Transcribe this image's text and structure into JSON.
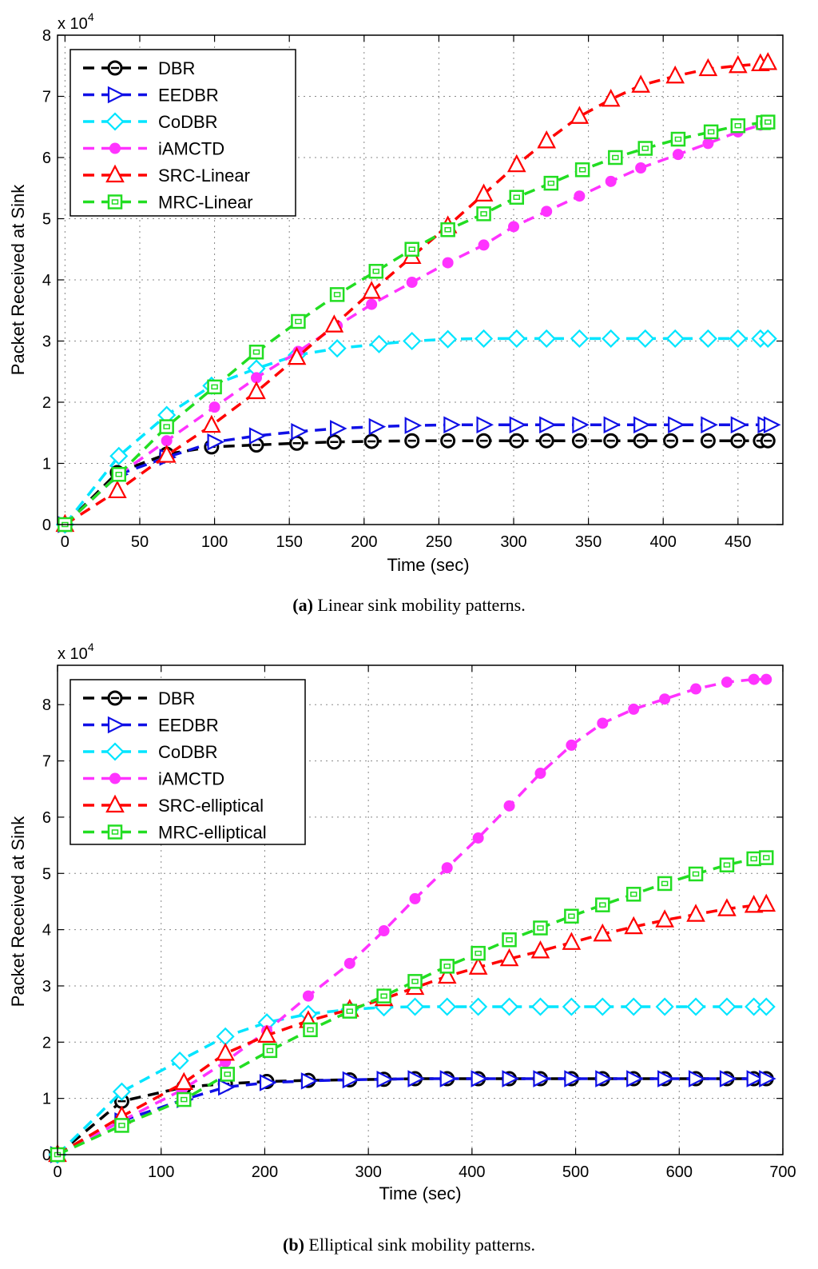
{
  "chart_data": [
    {
      "type": "line",
      "caption_letter": "a",
      "caption_text": " Linear sink mobility patterns.",
      "xlabel": "Time (sec)",
      "ylabel": "Packet Received at Sink",
      "y_multiplier": "x 10",
      "y_multiplier_exp": "4",
      "xlim": [
        -5,
        480
      ],
      "ylim": [
        0,
        8
      ],
      "xticks": [
        0,
        50,
        100,
        150,
        200,
        250,
        300,
        350,
        400,
        450
      ],
      "yticks": [
        0,
        1,
        2,
        3,
        4,
        5,
        6,
        7,
        8
      ],
      "grid": true,
      "legend_position": "top-left",
      "series": [
        {
          "name": "DBR",
          "color": "#000000",
          "marker": "circle-bar",
          "x": [
            0,
            35,
            68,
            98,
            128,
            155,
            180,
            205,
            232,
            256,
            280,
            302,
            322,
            344,
            365,
            385,
            405,
            430,
            450,
            465,
            470
          ],
          "y": [
            0,
            0.85,
            1.15,
            1.27,
            1.3,
            1.33,
            1.35,
            1.36,
            1.37,
            1.37,
            1.37,
            1.37,
            1.37,
            1.37,
            1.37,
            1.37,
            1.37,
            1.37,
            1.37,
            1.37,
            1.37
          ]
        },
        {
          "name": "EEDBR",
          "color": "#1010e6",
          "marker": "triangle-right",
          "x": [
            0,
            36,
            68,
            100,
            128,
            156,
            182,
            208,
            232,
            258,
            280,
            302,
            322,
            344,
            365,
            385,
            408,
            430,
            450,
            468,
            472
          ],
          "y": [
            0,
            0.82,
            1.1,
            1.35,
            1.45,
            1.52,
            1.57,
            1.6,
            1.62,
            1.63,
            1.63,
            1.63,
            1.63,
            1.63,
            1.63,
            1.63,
            1.63,
            1.63,
            1.63,
            1.63,
            1.63
          ]
        },
        {
          "name": "CoDBR",
          "color": "#00e5ff",
          "marker": "diamond",
          "x": [
            0,
            36,
            68,
            98,
            128,
            155,
            182,
            210,
            232,
            256,
            280,
            302,
            322,
            344,
            365,
            388,
            408,
            430,
            450,
            465,
            470
          ],
          "y": [
            0,
            1.12,
            1.79,
            2.27,
            2.55,
            2.77,
            2.88,
            2.95,
            3.0,
            3.03,
            3.04,
            3.04,
            3.04,
            3.04,
            3.04,
            3.04,
            3.04,
            3.04,
            3.04,
            3.04,
            3.04
          ]
        },
        {
          "name": "iAMCTD",
          "color": "#ff33ff",
          "marker": "dot",
          "x": [
            0,
            35,
            68,
            100,
            128,
            156,
            182,
            205,
            232,
            256,
            280,
            300,
            322,
            344,
            365,
            385,
            410,
            430,
            450,
            465
          ],
          "y": [
            0,
            0.8,
            1.37,
            1.92,
            2.4,
            2.83,
            3.25,
            3.6,
            3.96,
            4.28,
            4.57,
            4.87,
            5.12,
            5.37,
            5.61,
            5.83,
            6.05,
            6.23,
            6.42,
            6.53
          ]
        },
        {
          "name": "SRC-Linear",
          "color": "#ff0000",
          "marker": "triangle-up",
          "x": [
            0,
            35,
            68,
            98,
            128,
            155,
            180,
            205,
            232,
            256,
            280,
            302,
            322,
            344,
            365,
            385,
            408,
            430,
            450,
            465,
            470
          ],
          "y": [
            0,
            0.55,
            1.13,
            1.62,
            2.17,
            2.73,
            3.26,
            3.81,
            4.38,
            4.88,
            5.4,
            5.88,
            6.27,
            6.67,
            6.95,
            7.18,
            7.33,
            7.45,
            7.5,
            7.53,
            7.55
          ]
        },
        {
          "name": "MRC-Linear",
          "color": "#22dd22",
          "marker": "square",
          "x": [
            0,
            36,
            68,
            100,
            128,
            156,
            182,
            208,
            232,
            256,
            280,
            302,
            325,
            346,
            368,
            388,
            410,
            432,
            450,
            467,
            470
          ],
          "y": [
            0,
            0.82,
            1.6,
            2.25,
            2.82,
            3.32,
            3.76,
            4.14,
            4.5,
            4.82,
            5.08,
            5.35,
            5.58,
            5.8,
            6.0,
            6.15,
            6.3,
            6.42,
            6.52,
            6.57,
            6.58
          ]
        }
      ]
    },
    {
      "type": "line",
      "caption_letter": "b",
      "caption_text": " Elliptical sink mobility patterns.",
      "xlabel": "Time (sec)",
      "ylabel": "Packet Received at Sink",
      "y_multiplier": "x 10",
      "y_multiplier_exp": "4",
      "xlim": [
        0,
        700
      ],
      "ylim": [
        0,
        8.7
      ],
      "xticks": [
        0,
        100,
        200,
        300,
        400,
        500,
        600,
        700
      ],
      "yticks": [
        0,
        1,
        2,
        3,
        4,
        5,
        6,
        7,
        8
      ],
      "grid": true,
      "legend_position": "top-left",
      "series": [
        {
          "name": "DBR",
          "color": "#000000",
          "marker": "circle-bar",
          "x": [
            0,
            62,
            122,
            162,
            202,
            242,
            282,
            315,
            345,
            376,
            406,
            436,
            466,
            496,
            526,
            556,
            586,
            616,
            646,
            672,
            684
          ],
          "y": [
            0,
            0.95,
            1.2,
            1.26,
            1.3,
            1.32,
            1.33,
            1.34,
            1.35,
            1.35,
            1.35,
            1.35,
            1.35,
            1.35,
            1.35,
            1.35,
            1.35,
            1.35,
            1.35,
            1.35,
            1.35
          ]
        },
        {
          "name": "EEDBR",
          "color": "#1010e6",
          "marker": "triangle-right",
          "x": [
            0,
            62,
            122,
            162,
            202,
            242,
            282,
            315,
            345,
            376,
            406,
            436,
            466,
            496,
            526,
            556,
            586,
            616,
            646,
            672,
            684
          ],
          "y": [
            0,
            0.6,
            0.98,
            1.2,
            1.28,
            1.31,
            1.33,
            1.34,
            1.35,
            1.35,
            1.35,
            1.35,
            1.35,
            1.35,
            1.35,
            1.35,
            1.35,
            1.35,
            1.35,
            1.35,
            1.35
          ]
        },
        {
          "name": "CoDBR",
          "color": "#00e5ff",
          "marker": "diamond",
          "x": [
            0,
            62,
            118,
            162,
            202,
            242,
            282,
            315,
            345,
            376,
            406,
            436,
            466,
            496,
            526,
            556,
            586,
            616,
            646,
            672,
            684
          ],
          "y": [
            0,
            1.12,
            1.67,
            2.1,
            2.35,
            2.5,
            2.58,
            2.62,
            2.63,
            2.63,
            2.63,
            2.63,
            2.63,
            2.63,
            2.63,
            2.63,
            2.63,
            2.63,
            2.63,
            2.63,
            2.63
          ]
        },
        {
          "name": "iAMCTD",
          "color": "#ff33ff",
          "marker": "dot",
          "x": [
            0,
            62,
            120,
            162,
            202,
            242,
            282,
            315,
            345,
            376,
            406,
            436,
            466,
            496,
            526,
            556,
            586,
            616,
            646,
            672,
            684
          ],
          "y": [
            0,
            0.6,
            1.15,
            1.65,
            2.2,
            2.82,
            3.4,
            3.98,
            4.55,
            5.1,
            5.63,
            6.2,
            6.78,
            7.28,
            7.67,
            7.92,
            8.1,
            8.28,
            8.4,
            8.45,
            8.45
          ]
        },
        {
          "name": "SRC-elliptical",
          "color": "#ff0000",
          "marker": "triangle-up",
          "x": [
            0,
            62,
            122,
            162,
            202,
            242,
            282,
            315,
            345,
            376,
            406,
            436,
            466,
            496,
            526,
            556,
            586,
            616,
            646,
            672,
            684
          ],
          "y": [
            0,
            0.68,
            1.28,
            1.8,
            2.12,
            2.38,
            2.58,
            2.77,
            2.97,
            3.17,
            3.33,
            3.48,
            3.62,
            3.77,
            3.92,
            4.05,
            4.17,
            4.27,
            4.37,
            4.43,
            4.45
          ]
        },
        {
          "name": "MRC-elliptical",
          "color": "#22dd22",
          "marker": "square",
          "x": [
            0,
            62,
            122,
            164,
            205,
            244,
            282,
            315,
            345,
            376,
            406,
            436,
            466,
            496,
            526,
            556,
            586,
            616,
            646,
            672,
            684
          ],
          "y": [
            0,
            0.52,
            0.98,
            1.43,
            1.85,
            2.22,
            2.55,
            2.82,
            3.08,
            3.35,
            3.58,
            3.82,
            4.03,
            4.24,
            4.44,
            4.63,
            4.82,
            4.99,
            5.15,
            5.26,
            5.28
          ]
        }
      ]
    }
  ]
}
